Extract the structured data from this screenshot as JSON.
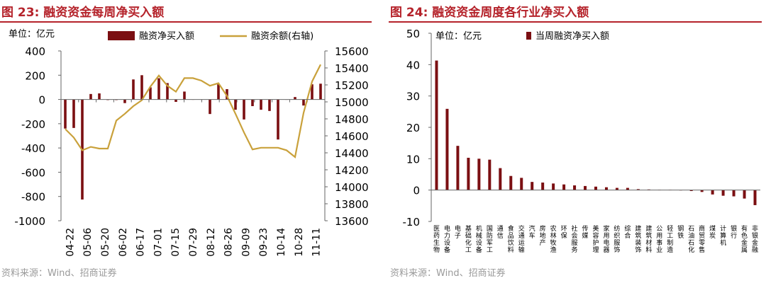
{
  "left_panel": {
    "title": "图 23:  融资资金每周净买入额",
    "source": "资料来源：Wind、招商证券",
    "unit": "单位：亿元"
  },
  "right_panel": {
    "title": "图 24:  融资资金周度各行业净买入额",
    "source": "资料来源：Wind、招商证券",
    "unit": "单位：亿元"
  },
  "chart_data": [
    {
      "type": "bar",
      "title": "融资资金每周净买入额",
      "unit": "单位：亿元",
      "bar_color": "#7b0f12",
      "line_color": "#c9a13b",
      "x_tick_labels": [
        "04-22",
        "05-06",
        "05-20",
        "06-02",
        "06-17",
        "07-01",
        "07-15",
        "07-29",
        "08-12",
        "08-26",
        "09-09",
        "09-23",
        "10-14",
        "10-28",
        "11-11"
      ],
      "ylim": [
        -1000,
        400
      ],
      "yticks": [
        400,
        200,
        0,
        -200,
        -400,
        -600,
        -800,
        -1000
      ],
      "y2lim": [
        13600,
        15600
      ],
      "y2ticks": [
        15600,
        15400,
        15200,
        15000,
        14800,
        14600,
        14400,
        14200,
        14000,
        13800,
        13600
      ],
      "series": [
        {
          "name": "融资净买入额",
          "type": "bar",
          "axis": "left",
          "values": [
            -240,
            -235,
            -825,
            45,
            50,
            -5,
            -5,
            -30,
            165,
            200,
            100,
            175,
            135,
            -20,
            65,
            0,
            0,
            -120,
            125,
            85,
            -85,
            -165,
            -55,
            -85,
            -95,
            -330,
            0,
            20,
            -50,
            125,
            130
          ]
        },
        {
          "name": "融资余额(右轴)",
          "type": "line",
          "axis": "right",
          "values": [
            14680,
            14580,
            14430,
            14470,
            14450,
            14450,
            14780,
            14860,
            14950,
            15020,
            15180,
            15310,
            15190,
            15120,
            15280,
            15280,
            15250,
            15190,
            15220,
            15070,
            14860,
            14640,
            14440,
            14460,
            14460,
            14460,
            14430,
            14350,
            14870,
            15240,
            15440
          ]
        }
      ]
    },
    {
      "type": "bar",
      "title": "融资资金周度各行业净买入额",
      "unit": "单位：亿元",
      "bar_color": "#7b0f12",
      "ylim": [
        -10,
        50
      ],
      "yticks": [
        50,
        40,
        30,
        20,
        10,
        0,
        -10
      ],
      "series": [
        {
          "name": "当周融资净买入额"
        }
      ],
      "categories": [
        "医药生物",
        "电力设备",
        "电子",
        "基础化工",
        "机械设备",
        "国防军工",
        "通信",
        "食品饮料",
        "交通运输",
        "汽车",
        "房地产",
        "农林牧渔",
        "环保",
        "社会服务",
        "传媒",
        "美容护理",
        "家用电器",
        "纺织服饰",
        "综合",
        "建筑装饰",
        "建筑材料",
        "公用事业",
        "轻工制造",
        "钢铁",
        "石油石化",
        "商贸零售",
        "煤炭",
        "计算机",
        "银行",
        "有色金属",
        "非银金融"
      ],
      "values": [
        41.3,
        25.9,
        14.1,
        10.3,
        10.0,
        9.7,
        7.0,
        4.5,
        3.9,
        2.6,
        2.4,
        2.1,
        1.8,
        1.5,
        1.3,
        1.1,
        0.9,
        0.7,
        0.7,
        0.3,
        0.2,
        0.1,
        0.1,
        -0.1,
        -0.3,
        -0.6,
        -1.4,
        -1.8,
        -2.0,
        -2.7,
        -4.8
      ]
    }
  ]
}
